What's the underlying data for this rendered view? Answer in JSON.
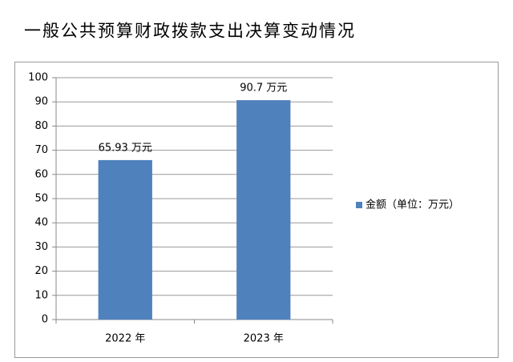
{
  "chart_data": {
    "type": "bar",
    "title": "一般公共预算财政拨款支出决算变动情况",
    "categories": [
      "2022 年",
      "2023 年"
    ],
    "series": [
      {
        "name": "金额（单位：万元）",
        "color": "#4f81bd",
        "values": [
          65.93,
          90.7
        ],
        "value_labels": [
          "65.93 万元",
          "90.7 万元"
        ]
      }
    ],
    "ylim": [
      0,
      100
    ],
    "yticks": [
      0,
      10,
      20,
      30,
      40,
      50,
      60,
      70,
      80,
      90,
      100
    ],
    "grid": true,
    "legend": "right"
  }
}
